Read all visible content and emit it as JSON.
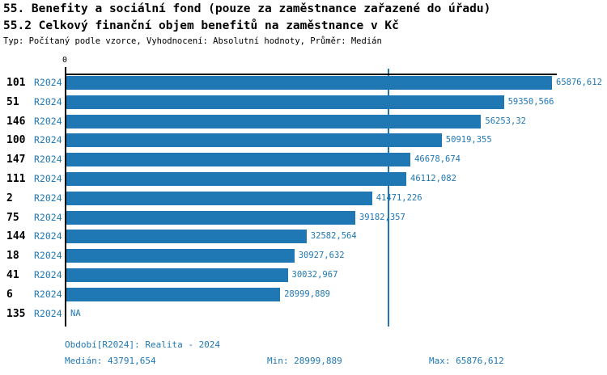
{
  "chart_data": {
    "type": "bar",
    "orientation": "horizontal",
    "title": "55. Benefity a sociální fond (pouze za zaměstnance zařazené do úřadu)",
    "subtitle": "55.2 Celkový finanční objem benefitů na zaměstnance v Kč",
    "note": "Typ: Počítaný podle vzorce, Vyhodnocení: Absolutní hodnoty, Průměr: Medián",
    "period_label": "R2024",
    "categories": [
      "101",
      "51",
      "146",
      "100",
      "147",
      "111",
      "2",
      "75",
      "144",
      "18",
      "41",
      "6",
      "135"
    ],
    "values": [
      65876.612,
      59350.566,
      56253.32,
      50919.355,
      46678.674,
      46112.082,
      41471.226,
      39182.357,
      32582.564,
      30927.632,
      30032.967,
      28999.889,
      null
    ],
    "value_labels": [
      "65876,612",
      "59350,566",
      "56253,32",
      "50919,355",
      "46678,674",
      "46112,082",
      "41471,226",
      "39182,357",
      "32582,564",
      "30927,632",
      "30032,967",
      "28999,889",
      "NA"
    ],
    "axis": {
      "zero_label": "0",
      "xmin": 0,
      "xmax_data": 65876.612
    },
    "median_line": {
      "value": 43791.654,
      "color": "#1f77b4"
    },
    "grid": false,
    "legend_position": "none",
    "bar_color": "#1f77b4",
    "label_color": "#1f77b4",
    "axis_color": "#000000"
  },
  "footer": {
    "period_info": "Období[R2024]: Realita - 2024",
    "median": "Medián: 43791,654",
    "min": "Min: 28999,889",
    "max": "Max: 65876,612"
  }
}
